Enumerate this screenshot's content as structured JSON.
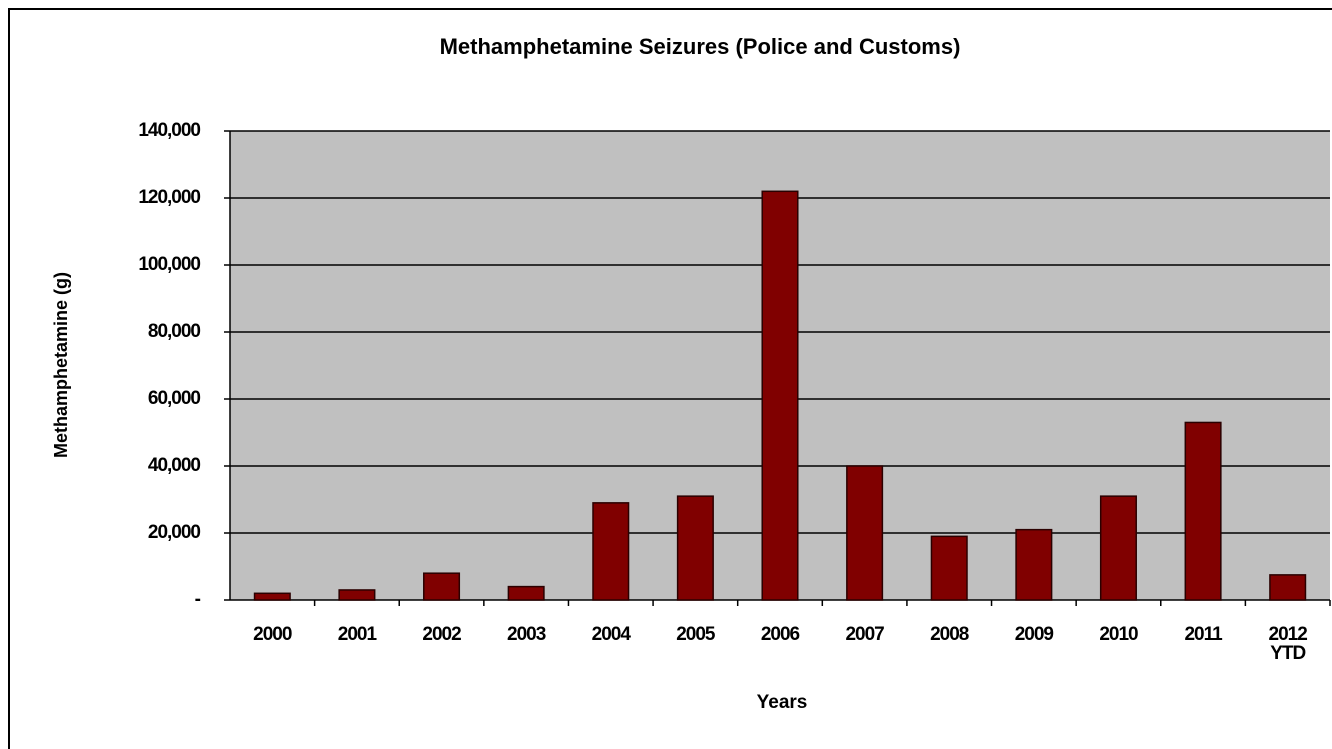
{
  "chart_data": {
    "type": "bar",
    "title": "Methamphetamine  Seizures (Police and Customs)",
    "x_label": "Years",
    "y_label": "Methamphetamine (g)",
    "categories": [
      "2000",
      "2001",
      "2002",
      "2003",
      "2004",
      "2005",
      "2006",
      "2007",
      "2008",
      "2009",
      "2010",
      "2011",
      "2012 YTD"
    ],
    "values": [
      2000,
      3000,
      8000,
      4000,
      29000,
      31000,
      122000,
      40000,
      19000,
      21000,
      31000,
      53000,
      7500
    ],
    "color": "#800000",
    "ylim": [
      0,
      140000
    ],
    "yticks": [
      {
        "value": 0,
        "label": "-"
      },
      {
        "value": 20000,
        "label": "20,000"
      },
      {
        "value": 40000,
        "label": "40,000"
      },
      {
        "value": 60000,
        "label": "60,000"
      },
      {
        "value": 80000,
        "label": "80,000"
      },
      {
        "value": 100000,
        "label": "100,000"
      },
      {
        "value": 120000,
        "label": "120,000"
      },
      {
        "value": 140000,
        "label": "140,000"
      }
    ],
    "grid": true
  }
}
